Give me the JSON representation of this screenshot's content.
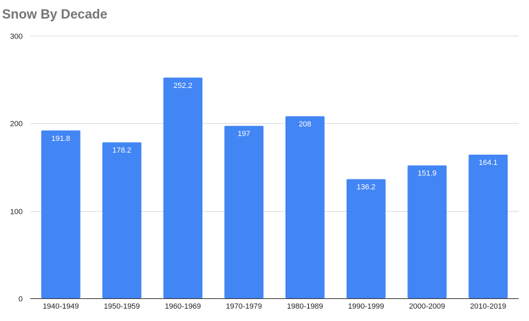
{
  "chart_data": {
    "type": "bar",
    "title": "Snow By Decade",
    "xlabel": "",
    "ylabel": "",
    "categories": [
      "1940-1949",
      "1950-1959",
      "1960-1969",
      "1970-1979",
      "1980-1989",
      "1990-1999",
      "2000-2009",
      "2010-2019"
    ],
    "values": [
      191.8,
      178.2,
      252.2,
      197,
      208,
      136.2,
      151.9,
      164.1
    ],
    "data_labels": [
      "191.8",
      "178.2",
      "252.2",
      "197",
      "208",
      "136.2",
      "151.9",
      "164.1"
    ],
    "ylim": [
      0,
      300
    ],
    "yticks": [
      0,
      100,
      200,
      300
    ],
    "ytick_labels": [
      "0",
      "100",
      "200",
      "300"
    ],
    "grid": true,
    "legend": "none",
    "colors": {
      "bar": "#4285f4",
      "title": "#757575",
      "gridline": "#dddddd",
      "baseline": "#333333",
      "label_text": "#ffffff"
    }
  }
}
